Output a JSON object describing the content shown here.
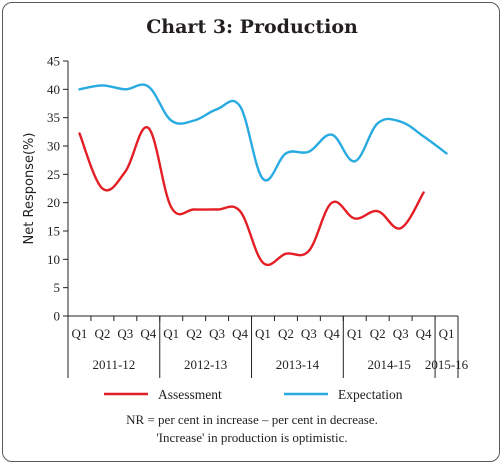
{
  "chart_data": {
    "type": "line",
    "title": "Chart 3: Production",
    "ylabel": "Net Response(%)",
    "xlabel": "",
    "ylim": [
      0,
      45
    ],
    "yticks": [
      0,
      5,
      10,
      15,
      20,
      25,
      30,
      35,
      40,
      45
    ],
    "grid": false,
    "legend_position": "bottom",
    "quarters": [
      "Q1",
      "Q2",
      "Q3",
      "Q4",
      "Q1",
      "Q2",
      "Q3",
      "Q4",
      "Q1",
      "Q2",
      "Q3",
      "Q4",
      "Q1",
      "Q2",
      "Q3",
      "Q4",
      "Q1"
    ],
    "years": [
      {
        "label": "2011-12",
        "span": 4
      },
      {
        "label": "2012-13",
        "span": 4
      },
      {
        "label": "2013-14",
        "span": 4
      },
      {
        "label": "2014-15",
        "span": 4
      },
      {
        "label": "2015-16",
        "span": 1
      }
    ],
    "series": [
      {
        "name": "Assessment",
        "color": "#e31e24",
        "values": [
          32.2,
          22.5,
          25.5,
          33.2,
          19.2,
          18.8,
          18.8,
          18.5,
          9.4,
          11.0,
          11.5,
          20.0,
          17.2,
          18.5,
          15.5,
          21.8,
          null
        ]
      },
      {
        "name": "Expectation",
        "color": "#29abe2",
        "values": [
          40.0,
          40.7,
          40.0,
          40.5,
          34.5,
          34.5,
          36.5,
          37.0,
          24.2,
          28.7,
          29.0,
          32.0,
          27.3,
          34.0,
          34.3,
          31.7,
          28.7
        ]
      }
    ]
  },
  "notes": {
    "line1": "NR = per cent in increase – per cent in decrease.",
    "line2": "'Increase' in production is optimistic."
  }
}
